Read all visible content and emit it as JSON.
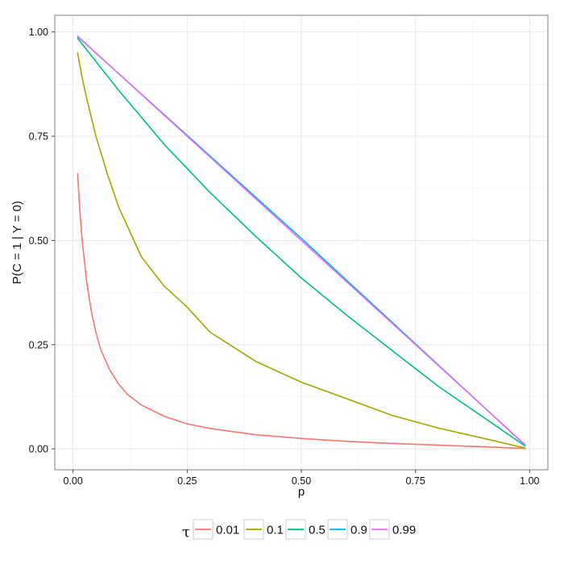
{
  "chart_data": {
    "type": "line",
    "title": "",
    "xlabel": "p",
    "ylabel": "P(C = 1 | Y = 0)",
    "xlim": [
      -0.04,
      1.04
    ],
    "ylim": [
      -0.05,
      1.04
    ],
    "x_ticks": [
      0.0,
      0.25,
      0.5,
      0.75,
      1.0
    ],
    "x_tick_labels": [
      "0.00",
      "0.25",
      "0.50",
      "0.75",
      "1.00"
    ],
    "y_ticks": [
      0.0,
      0.25,
      0.5,
      0.75,
      1.0
    ],
    "y_tick_labels": [
      "0.00",
      "0.25",
      "0.50",
      "0.75",
      "1.00"
    ],
    "grid": true,
    "legend": {
      "title": "τ",
      "position": "bottom"
    },
    "series": [
      {
        "name": "0.01",
        "color": "#F8766D",
        "x": [
          0.01,
          0.015,
          0.02,
          0.03,
          0.04,
          0.05,
          0.06,
          0.08,
          0.1,
          0.12,
          0.15,
          0.2,
          0.25,
          0.3,
          0.4,
          0.5,
          0.6,
          0.7,
          0.8,
          0.9,
          0.99
        ],
        "y": [
          0.66,
          0.57,
          0.5,
          0.4,
          0.33,
          0.28,
          0.24,
          0.19,
          0.155,
          0.13,
          0.105,
          0.078,
          0.06,
          0.049,
          0.034,
          0.025,
          0.018,
          0.013,
          0.009,
          0.005,
          0.001
        ]
      },
      {
        "name": "0.1",
        "color": "#A3A500",
        "x": [
          0.01,
          0.02,
          0.03,
          0.05,
          0.075,
          0.1,
          0.15,
          0.2,
          0.25,
          0.3,
          0.35,
          0.4,
          0.5,
          0.6,
          0.7,
          0.8,
          0.9,
          0.99
        ],
        "y": [
          0.95,
          0.89,
          0.84,
          0.75,
          0.66,
          0.58,
          0.46,
          0.39,
          0.34,
          0.28,
          0.245,
          0.21,
          0.16,
          0.12,
          0.08,
          0.05,
          0.025,
          0.002
        ]
      },
      {
        "name": "0.5",
        "color": "#00BF7D",
        "x": [
          0.01,
          0.1,
          0.2,
          0.3,
          0.4,
          0.5,
          0.6,
          0.7,
          0.8,
          0.9,
          0.99
        ],
        "y": [
          0.985,
          0.86,
          0.73,
          0.615,
          0.51,
          0.41,
          0.32,
          0.235,
          0.15,
          0.075,
          0.007
        ]
      },
      {
        "name": "0.9",
        "color": "#00B0F6",
        "x": [
          0.01,
          0.5,
          0.99
        ],
        "y": [
          0.989,
          0.505,
          0.009
        ]
      },
      {
        "name": "0.99",
        "color": "#E76BF3",
        "x": [
          0.01,
          0.5,
          0.99
        ],
        "y": [
          0.99,
          0.5,
          0.01
        ]
      }
    ]
  }
}
